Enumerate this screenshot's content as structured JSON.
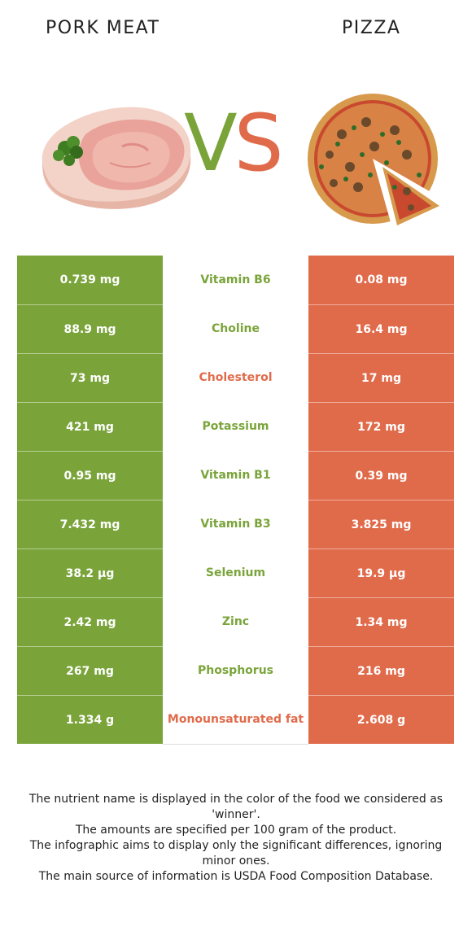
{
  "header": {
    "left_title": "PORK MEAT",
    "right_title": "PIZZA"
  },
  "vs": {
    "v": "V",
    "s": "S"
  },
  "colors": {
    "left_accent": "#7aa43a",
    "right_accent": "#e06b4b"
  },
  "rows": [
    {
      "left": "0.739 mg",
      "nutrient": "Vitamin B6",
      "right": "0.08 mg",
      "winner": "left"
    },
    {
      "left": "88.9 mg",
      "nutrient": "Choline",
      "right": "16.4 mg",
      "winner": "left"
    },
    {
      "left": "73 mg",
      "nutrient": "Cholesterol",
      "right": "17 mg",
      "winner": "right"
    },
    {
      "left": "421 mg",
      "nutrient": "Potassium",
      "right": "172 mg",
      "winner": "left"
    },
    {
      "left": "0.95 mg",
      "nutrient": "Vitamin B1",
      "right": "0.39 mg",
      "winner": "left"
    },
    {
      "left": "7.432 mg",
      "nutrient": "Vitamin B3",
      "right": "3.825 mg",
      "winner": "left"
    },
    {
      "left": "38.2 µg",
      "nutrient": "Selenium",
      "right": "19.9 µg",
      "winner": "left"
    },
    {
      "left": "2.42 mg",
      "nutrient": "Zinc",
      "right": "1.34 mg",
      "winner": "left"
    },
    {
      "left": "267 mg",
      "nutrient": "Phosphorus",
      "right": "216 mg",
      "winner": "left"
    },
    {
      "left": "1.334 g",
      "nutrient": "Monounsaturated fat",
      "right": "2.608 g",
      "winner": "right"
    }
  ],
  "footer": {
    "lines": [
      "The nutrient name is displayed in the color of the food we considered as 'winner'.",
      "The amounts are specified per 100 gram of the product.",
      "The infographic aims to display only the significant differences, ignoring minor ones.",
      "The main source of information is USDA Food Composition Database."
    ]
  }
}
